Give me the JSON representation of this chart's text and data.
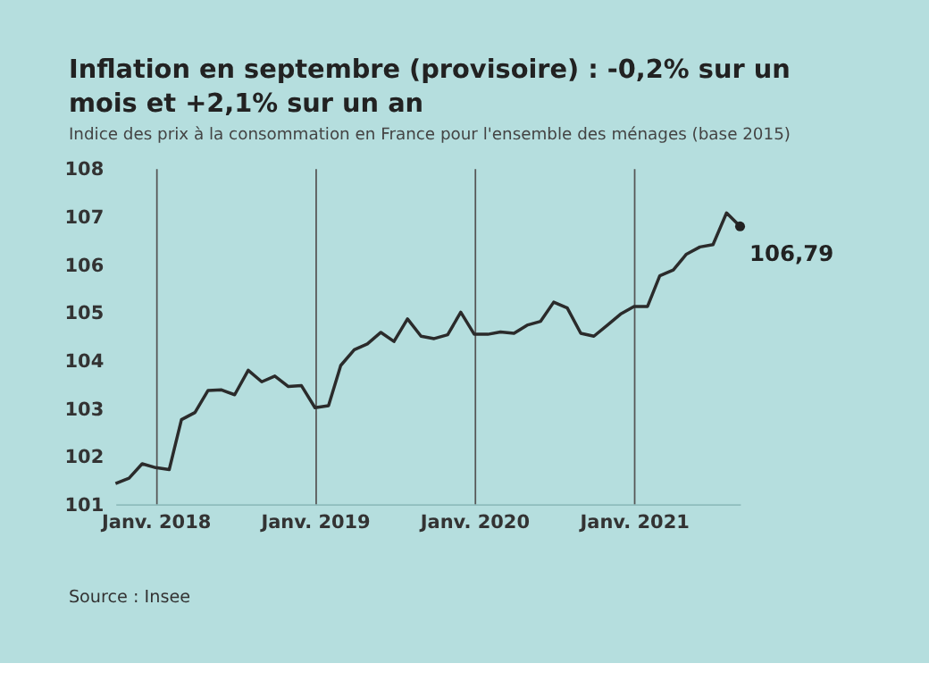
{
  "chart_data": {
    "type": "line",
    "title": [
      "Inflation en septembre (provisoire) : -0,2% sur un",
      "mois et +2,1% sur un an"
    ],
    "subtitle": "Indice des prix à la consommation en France pour l'ensemble des ménages (base 2015)",
    "x": [
      "2017-10",
      "2017-11",
      "2017-12",
      "2018-01",
      "2018-02",
      "2018-03",
      "2018-04",
      "2018-05",
      "2018-06",
      "2018-07",
      "2018-08",
      "2018-09",
      "2018-10",
      "2018-11",
      "2018-12",
      "2019-01",
      "2019-02",
      "2019-03",
      "2019-04",
      "2019-05",
      "2019-06",
      "2019-07",
      "2019-08",
      "2019-09",
      "2019-10",
      "2019-11",
      "2019-12",
      "2020-01",
      "2020-02",
      "2020-03",
      "2020-04",
      "2020-05",
      "2020-06",
      "2020-07",
      "2020-08",
      "2020-09",
      "2020-10",
      "2020-11",
      "2020-12",
      "2021-01",
      "2021-02",
      "2021-03",
      "2021-04",
      "2021-05",
      "2021-06",
      "2021-07",
      "2021-08",
      "2021-09"
    ],
    "series": [
      {
        "color": "#2b2b2b",
        "values": [
          101.43,
          101.54,
          101.84,
          101.76,
          101.72,
          102.76,
          102.91,
          103.37,
          103.38,
          103.28,
          103.79,
          103.55,
          103.67,
          103.45,
          103.47,
          103.01,
          103.05,
          103.89,
          104.22,
          104.34,
          104.58,
          104.39,
          104.86,
          104.5,
          104.45,
          104.53,
          105.0,
          104.54,
          104.54,
          104.59,
          104.56,
          104.73,
          104.81,
          105.21,
          105.09,
          104.56,
          104.5,
          104.73,
          104.96,
          105.12,
          105.12,
          105.76,
          105.88,
          106.21,
          106.36,
          106.41,
          107.07,
          106.79
        ]
      },
      {
        "type": "scatter",
        "color": "#222222",
        "x": [
          "2021-09"
        ],
        "values": [
          106.79
        ],
        "marker": "circle"
      }
    ],
    "xlim": [
      "2017-10",
      "2021-09"
    ],
    "xticks": [
      {
        "value": "2018-01",
        "label": "Janv. 2018"
      },
      {
        "value": "2019-01",
        "label": "Janv. 2019"
      },
      {
        "value": "2020-01",
        "label": "Janv. 2020"
      },
      {
        "value": "2021-01",
        "label": "Janv. 2021"
      }
    ],
    "ylim": [
      101,
      108
    ],
    "yticks": [
      101,
      102,
      103,
      104,
      105,
      106,
      107,
      108
    ],
    "grid": "x",
    "legend": false,
    "marker": "none",
    "line_style": "solid",
    "annotations": [
      {
        "text": "106,79",
        "x": "2021-09",
        "y": 106.79
      },
      "Source : Insee"
    ]
  }
}
